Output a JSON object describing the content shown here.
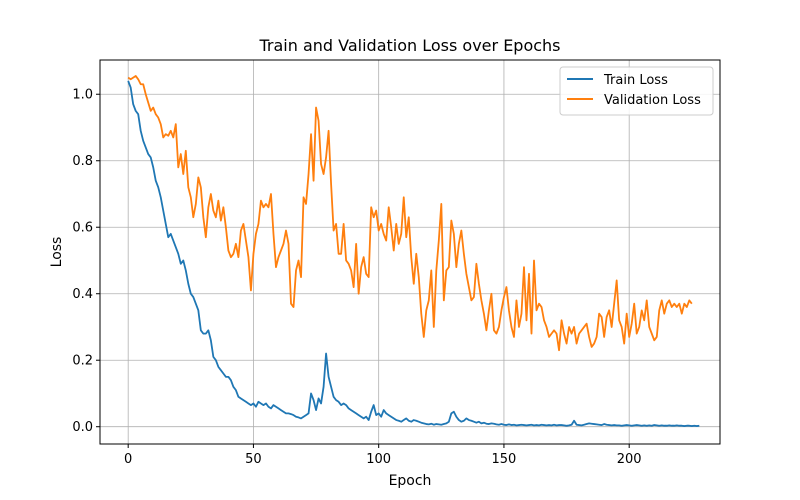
{
  "chart_data": {
    "type": "line",
    "title": "Train and Validation Loss over Epochs",
    "xlabel": "Epoch",
    "ylabel": "Loss",
    "xlim": [
      -11.25,
      236.25
    ],
    "ylim": [
      -0.052,
      1.103
    ],
    "xticks": [
      0,
      50,
      100,
      150,
      200
    ],
    "yticks": [
      0.0,
      0.2,
      0.4,
      0.6,
      0.8,
      1.0
    ],
    "grid": true,
    "legend_position": "upper-right",
    "series": [
      {
        "name": "Train Loss",
        "color": "#1f77b4",
        "x_start": 0,
        "values": [
          1.04,
          1.02,
          0.97,
          0.95,
          0.94,
          0.89,
          0.86,
          0.84,
          0.82,
          0.81,
          0.78,
          0.74,
          0.72,
          0.69,
          0.65,
          0.61,
          0.57,
          0.58,
          0.56,
          0.54,
          0.52,
          0.49,
          0.5,
          0.47,
          0.43,
          0.4,
          0.39,
          0.37,
          0.35,
          0.29,
          0.28,
          0.28,
          0.29,
          0.26,
          0.21,
          0.2,
          0.18,
          0.17,
          0.16,
          0.15,
          0.15,
          0.14,
          0.12,
          0.11,
          0.09,
          0.085,
          0.08,
          0.075,
          0.07,
          0.065,
          0.07,
          0.06,
          0.075,
          0.07,
          0.065,
          0.07,
          0.06,
          0.055,
          0.065,
          0.06,
          0.055,
          0.05,
          0.045,
          0.04,
          0.04,
          0.038,
          0.035,
          0.03,
          0.028,
          0.025,
          0.03,
          0.035,
          0.04,
          0.1,
          0.08,
          0.05,
          0.085,
          0.07,
          0.12,
          0.22,
          0.15,
          0.12,
          0.09,
          0.08,
          0.075,
          0.065,
          0.07,
          0.065,
          0.055,
          0.05,
          0.045,
          0.04,
          0.035,
          0.03,
          0.025,
          0.03,
          0.02,
          0.045,
          0.065,
          0.035,
          0.04,
          0.03,
          0.05,
          0.04,
          0.035,
          0.03,
          0.025,
          0.02,
          0.018,
          0.015,
          0.02,
          0.025,
          0.018,
          0.015,
          0.02,
          0.018,
          0.015,
          0.012,
          0.01,
          0.008,
          0.007,
          0.009,
          0.006,
          0.008,
          0.007,
          0.006,
          0.008,
          0.01,
          0.015,
          0.04,
          0.045,
          0.03,
          0.02,
          0.015,
          0.018,
          0.025,
          0.02,
          0.018,
          0.015,
          0.012,
          0.015,
          0.01,
          0.012,
          0.009,
          0.008,
          0.01,
          0.009,
          0.007,
          0.006,
          0.008,
          0.006,
          0.005,
          0.007,
          0.005,
          0.006,
          0.004,
          0.005,
          0.006,
          0.005,
          0.004,
          0.005,
          0.006,
          0.004,
          0.005,
          0.004,
          0.006,
          0.005,
          0.004,
          0.005,
          0.004,
          0.006,
          0.004,
          0.005,
          0.005,
          0.004,
          0.003,
          0.004,
          0.006,
          0.018,
          0.006,
          0.005,
          0.004,
          0.006,
          0.008,
          0.01,
          0.009,
          0.008,
          0.007,
          0.006,
          0.005,
          0.008,
          0.006,
          0.005,
          0.004,
          0.005,
          0.004,
          0.004,
          0.003,
          0.004,
          0.005,
          0.004,
          0.003,
          0.004,
          0.005,
          0.004,
          0.003,
          0.004,
          0.003,
          0.004,
          0.003,
          0.005,
          0.004,
          0.003,
          0.004,
          0.003,
          0.003,
          0.004,
          0.003,
          0.003,
          0.004,
          0.003,
          0.003,
          0.002,
          0.003,
          0.003,
          0.002,
          0.003,
          0.002,
          0.003
        ]
      },
      {
        "name": "Validation Loss",
        "color": "#ff7f0e",
        "x_start": 0,
        "values": [
          1.05,
          1.045,
          1.05,
          1.055,
          1.045,
          1.03,
          1.03,
          1.0,
          0.975,
          0.95,
          0.96,
          0.94,
          0.93,
          0.91,
          0.87,
          0.88,
          0.875,
          0.89,
          0.87,
          0.91,
          0.78,
          0.82,
          0.76,
          0.83,
          0.72,
          0.69,
          0.63,
          0.67,
          0.75,
          0.72,
          0.63,
          0.57,
          0.66,
          0.7,
          0.65,
          0.63,
          0.68,
          0.62,
          0.66,
          0.6,
          0.53,
          0.51,
          0.52,
          0.55,
          0.51,
          0.59,
          0.61,
          0.56,
          0.51,
          0.41,
          0.52,
          0.58,
          0.61,
          0.68,
          0.66,
          0.67,
          0.66,
          0.7,
          0.58,
          0.48,
          0.51,
          0.53,
          0.55,
          0.59,
          0.55,
          0.37,
          0.36,
          0.47,
          0.5,
          0.45,
          0.69,
          0.67,
          0.76,
          0.88,
          0.74,
          0.96,
          0.92,
          0.79,
          0.76,
          0.81,
          0.89,
          0.73,
          0.59,
          0.61,
          0.52,
          0.52,
          0.61,
          0.5,
          0.49,
          0.47,
          0.42,
          0.55,
          0.4,
          0.48,
          0.51,
          0.46,
          0.45,
          0.66,
          0.63,
          0.65,
          0.59,
          0.61,
          0.58,
          0.56,
          0.66,
          0.6,
          0.53,
          0.61,
          0.55,
          0.58,
          0.69,
          0.57,
          0.63,
          0.51,
          0.43,
          0.52,
          0.45,
          0.34,
          0.27,
          0.35,
          0.38,
          0.47,
          0.3,
          0.47,
          0.56,
          0.67,
          0.38,
          0.47,
          0.48,
          0.62,
          0.58,
          0.48,
          0.55,
          0.59,
          0.52,
          0.46,
          0.42,
          0.38,
          0.39,
          0.49,
          0.43,
          0.38,
          0.34,
          0.29,
          0.35,
          0.4,
          0.29,
          0.28,
          0.3,
          0.35,
          0.39,
          0.42,
          0.35,
          0.3,
          0.27,
          0.38,
          0.3,
          0.34,
          0.48,
          0.32,
          0.46,
          0.28,
          0.5,
          0.35,
          0.37,
          0.36,
          0.32,
          0.3,
          0.27,
          0.28,
          0.29,
          0.28,
          0.23,
          0.32,
          0.28,
          0.25,
          0.3,
          0.28,
          0.3,
          0.25,
          0.28,
          0.29,
          0.3,
          0.31,
          0.27,
          0.24,
          0.25,
          0.27,
          0.34,
          0.33,
          0.27,
          0.33,
          0.35,
          0.3,
          0.37,
          0.44,
          0.32,
          0.3,
          0.25,
          0.34,
          0.27,
          0.31,
          0.37,
          0.28,
          0.3,
          0.35,
          0.32,
          0.38,
          0.3,
          0.28,
          0.26,
          0.27,
          0.35,
          0.38,
          0.34,
          0.37,
          0.38,
          0.36,
          0.37,
          0.36,
          0.37,
          0.34,
          0.37,
          0.36,
          0.38,
          0.37
        ]
      }
    ]
  }
}
